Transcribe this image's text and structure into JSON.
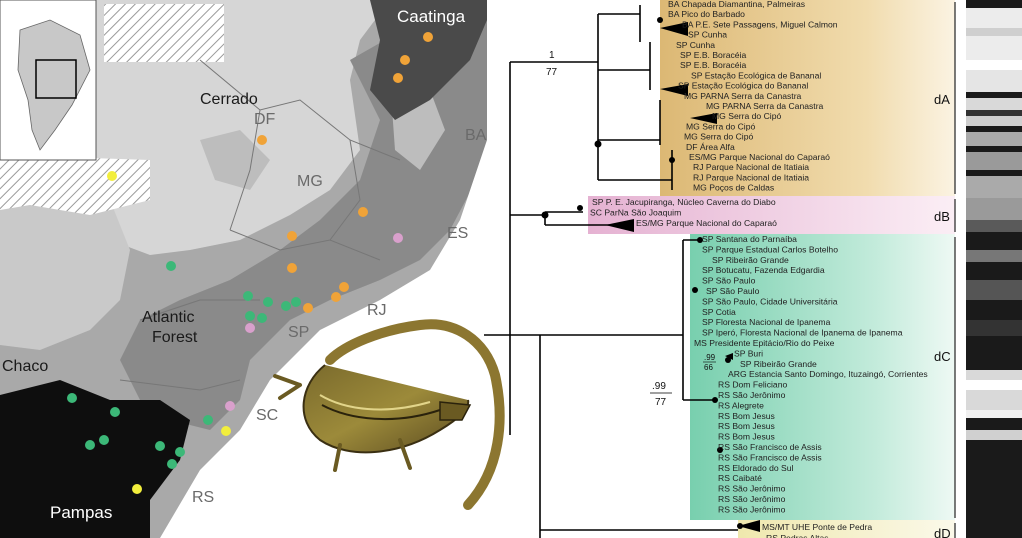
{
  "map": {
    "regions": {
      "caatinga": "Caatinga",
      "cerrado": "Cerrado",
      "atlantic_forest": "Atlantic Forest",
      "chaco": "Chaco",
      "pampas": "Pampas"
    },
    "states": {
      "ba": "BA",
      "df": "DF",
      "mg": "MG",
      "es": "ES",
      "rj": "RJ",
      "sp": "SP",
      "sc": "SC",
      "rs": "RS"
    }
  },
  "tree": {
    "clades": {
      "dA": "dA",
      "dB": "dB",
      "dC": "dC",
      "dD": "dD"
    },
    "support": {
      "root_top": "1",
      "root_bottom": "77",
      "dc_top": ".99",
      "dc_bottom": "77",
      "small_top": ".99",
      "small_bottom": "66"
    },
    "dA_tips": [
      "BA Chapada Diamantina, Palmeiras",
      "BA Pico do Barbado",
      "BA P.E. Sete Passagens, Miguel Calmon",
      "SP Cunha",
      "SP Cunha",
      "SP E.B. Boracéia",
      "SP E.B. Boracéia",
      "SP Estação Ecológica de Bananal",
      "SP Estação Ecológica do Bananal",
      "MG PARNA Serra da Canastra",
      "MG PARNA Serra da Canastra",
      "MG Serra do Cipó",
      "MG Serra do Cipó",
      "MG Serra do Cipó",
      "DF Área Alfa",
      "ES/MG Parque Nacional do Caparaó",
      "RJ Parque Nacional de Itatiaia",
      "RJ Parque Nacional de Itatiaia",
      "MG Poços de Caldas"
    ],
    "dB_tips": [
      "SP P. E. Jacupiranga, Núcleo Caverna do Diabo",
      "SC ParNa São Joaquim",
      "ES/MG Parque Nacional do Caparaó"
    ],
    "dC_tips": [
      "SP Santana do Parnaíba",
      "SP Parque Estadual Carlos Botelho",
      "SP Ribeirão Grande",
      "SP Botucatu, Fazenda Edgardia",
      "SP São Paulo",
      "SP São Paulo",
      "SP São Paulo, Cidade Universitária",
      "SP Cotia",
      "SP Floresta Nacional de Ipanema",
      "SP Iperó, Floresta Nacional de Ipanema de Ipanema",
      "MS Presidente Epitácio/Rio do Peixe",
      "SP Buri",
      "SP Ribeirão Grande",
      "ARG Estancia Santo Domingo, Ituzaingó, Corrientes",
      "RS Dom Feliciano",
      "RS São Jerônimo",
      "RS Alegrete",
      "RS Bom Jesus",
      "RS Bom Jesus",
      "RS Bom Jesus",
      "RS São Francisco de Assis",
      "RS São Francisco de Assis",
      "RS Eldorado do Sul",
      "RS Caibaté",
      "RS São Jerônimo",
      "RS São Jerônimo",
      "RS São Jerônimo"
    ],
    "dD_tips": [
      "MS/MT UHE Ponte de Pedra",
      "RS Pedras Altas"
    ]
  },
  "colors": {
    "cladeA": "#e8c98a",
    "cladeB": "#efc4dd",
    "cladeC": "#8fd6bd",
    "cladeD": "#f3efbf",
    "dot_orange": "#f0a338",
    "dot_green": "#3cb878",
    "dot_pink": "#d9a0cc",
    "dot_yellow": "#f2ee3c"
  }
}
